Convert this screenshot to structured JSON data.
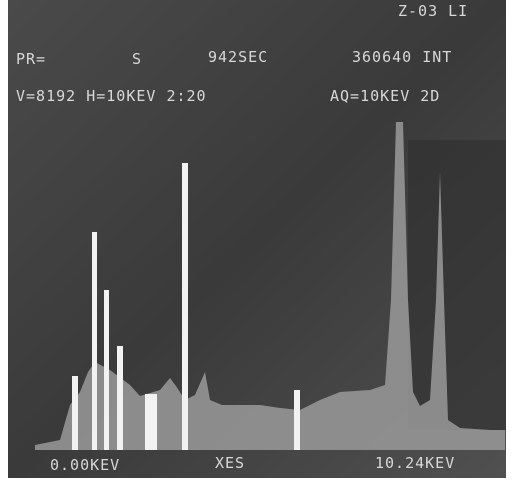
{
  "header": {
    "id": "Z-03 LI",
    "preset": "PR=",
    "mode": "S",
    "time": "942SEC",
    "integral": "360640 INT",
    "scale": "V=8192 H=10KEV 2:20",
    "acquisition": "AQ=10KEV 2D"
  },
  "axis": {
    "start": "0.00KEV",
    "label": "XES",
    "end": "10.24KEV"
  }
}
